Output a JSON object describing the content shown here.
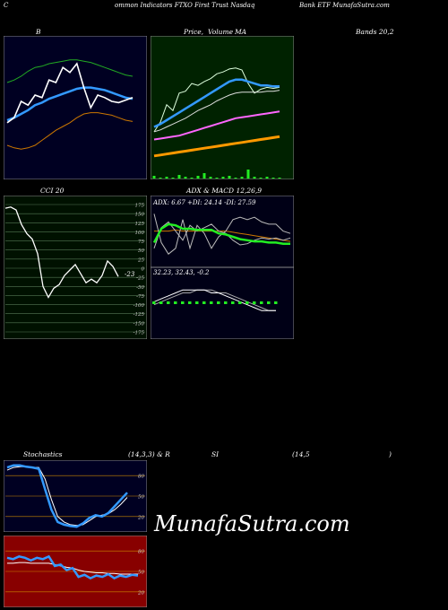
{
  "header": {
    "left": "C",
    "middle": "ommon  Indicators FTXO First Trust Nasdaq",
    "right": "Bank ETF MunafaSutra.com"
  },
  "labels": {
    "bollinger": "B",
    "price_ma": "Price,",
    "volume": "Volume",
    "ma": "MA",
    "bands": "Bands 20,2",
    "cci": "CCI 20",
    "adx": "ADX  & MACD 12,26,9",
    "adx_values": "ADX: 6.67  +DI: 24.14  -DI: 27.59",
    "macd_values": "32.23,  32.43,  -0.2",
    "stoch": "Stochastics",
    "stoch_params": "(14,3,3) & R",
    "rsi": "SI",
    "rsi_params": "(14,5",
    "rsi_close": ")",
    "watermark": "MunafaSutra.com"
  },
  "colors": {
    "bollinger_bg": "#000022",
    "price_bg": "#002200",
    "cci_bg": "#001100",
    "adx_bg": "#000016",
    "stoch_bg": "#000022",
    "rsi_bg": "#880000",
    "band_upper": "#22aa22",
    "band_lower": "#cc7700",
    "ma_blue": "#3399ff",
    "price_white": "#ffffff",
    "pink": "#ff66ff",
    "orange": "#ff9900",
    "green_line": "#22ee22"
  },
  "chart_data": [
    {
      "type": "line",
      "name": "bollinger",
      "ylim": [
        0,
        100
      ],
      "series": [
        {
          "key": "upper",
          "values": [
            70,
            72,
            75,
            79,
            82,
            83,
            85,
            86,
            87,
            88,
            88,
            87,
            86,
            84,
            82,
            80,
            78,
            76,
            75
          ]
        },
        {
          "key": "mid",
          "values": [
            40,
            42,
            45,
            48,
            52,
            54,
            57,
            59,
            61,
            63,
            65,
            66,
            66,
            65,
            64,
            62,
            60,
            58,
            57
          ]
        },
        {
          "key": "lower",
          "values": [
            20,
            18,
            17,
            18,
            20,
            24,
            28,
            32,
            35,
            38,
            42,
            45,
            46,
            46,
            45,
            44,
            42,
            40,
            39
          ]
        },
        {
          "key": "price",
          "values": [
            38,
            42,
            55,
            52,
            60,
            58,
            72,
            70,
            82,
            78,
            85,
            66,
            50,
            60,
            58,
            55,
            54,
            56,
            58
          ]
        }
      ]
    },
    {
      "type": "line",
      "name": "price_ma",
      "ylim": [
        0,
        100
      ],
      "series": [
        {
          "key": "price",
          "values": [
            20,
            30,
            48,
            42,
            60,
            62,
            70,
            68,
            72,
            75,
            80,
            82,
            85,
            86,
            84,
            70,
            60,
            64,
            66,
            65,
            66
          ]
        },
        {
          "key": "ma_short",
          "values": [
            25,
            28,
            32,
            36,
            40,
            44,
            48,
            52,
            56,
            60,
            64,
            68,
            72,
            74,
            74,
            72,
            70,
            68,
            68,
            67,
            67
          ]
        },
        {
          "key": "ma_mid",
          "values": [
            20,
            22,
            25,
            28,
            31,
            34,
            38,
            42,
            45,
            48,
            52,
            55,
            58,
            60,
            61,
            61,
            61,
            61,
            62,
            62,
            63
          ]
        },
        {
          "key": "ma_pink",
          "values": [
            12,
            13,
            14,
            15,
            16,
            18,
            20,
            22,
            24,
            26,
            28,
            30,
            32,
            34,
            35,
            36,
            37,
            38,
            39,
            40,
            41
          ]
        },
        {
          "key": "ma_orange",
          "values": [
            -5,
            -4,
            -3,
            -2,
            -1,
            0,
            1,
            2,
            3,
            4,
            5,
            6,
            7,
            8,
            9,
            10,
            11,
            12,
            13,
            14,
            15
          ]
        }
      ],
      "volume": [
        3,
        1,
        2,
        1,
        4,
        2,
        1,
        3,
        6,
        2,
        1,
        2,
        3,
        1,
        2,
        10,
        2,
        1,
        2,
        1,
        1
      ]
    },
    {
      "type": "line",
      "name": "cci",
      "ylim": [
        -175,
        175
      ],
      "ticks": [
        175,
        150,
        125,
        100,
        75,
        50,
        25,
        0,
        -25,
        -50,
        -75,
        -100,
        -125,
        -150,
        -175
      ],
      "tick_labels": [
        "175",
        "150",
        "125",
        "100",
        "75",
        "50",
        "25",
        "0",
        "-25",
        "-50",
        "-75",
        "-100",
        "-125",
        "-150",
        "-175"
      ],
      "value_label": "-23",
      "values": [
        165,
        168,
        160,
        120,
        95,
        80,
        40,
        -50,
        -80,
        -55,
        -45,
        -20,
        -5,
        10,
        -15,
        -40,
        -30,
        -40,
        -20,
        20,
        5,
        -23
      ]
    },
    {
      "type": "line",
      "name": "adx",
      "ylim": [
        0,
        50
      ],
      "series": [
        {
          "key": "adx",
          "values": [
            30,
            30,
            30,
            31,
            30,
            30,
            30,
            30,
            30,
            30,
            30,
            29,
            28,
            27,
            26,
            25,
            24,
            23,
            22,
            21
          ]
        },
        {
          "key": "plus_di",
          "values": [
            15,
            33,
            38,
            30,
            22,
            35,
            30,
            33,
            36,
            30,
            28,
            22,
            18,
            19,
            22,
            24,
            23,
            24,
            22,
            24
          ]
        },
        {
          "key": "minus_di",
          "values": [
            45,
            20,
            10,
            15,
            40,
            15,
            35,
            28,
            15,
            25,
            30,
            40,
            42,
            40,
            42,
            38,
            36,
            36,
            30,
            28
          ]
        },
        {
          "key": "adx_green",
          "values": [
            20,
            32,
            36,
            35,
            32,
            32,
            31,
            31,
            31,
            28,
            27,
            25,
            23,
            22,
            21,
            21,
            20,
            20,
            19,
            19
          ]
        }
      ]
    },
    {
      "type": "line",
      "name": "macd",
      "ylim": [
        -10,
        10
      ],
      "series": [
        {
          "key": "macd",
          "values": [
            2,
            3,
            4,
            5,
            6,
            6,
            6,
            6,
            5,
            5,
            4,
            3,
            2,
            1,
            0,
            -1,
            -1,
            -1
          ]
        },
        {
          "key": "signal",
          "values": [
            1,
            2,
            3,
            4,
            5,
            5,
            6,
            6,
            6,
            5,
            5,
            4,
            3,
            2,
            1,
            0,
            -1,
            -1
          ]
        }
      ]
    },
    {
      "type": "line",
      "name": "stochastics",
      "ylim": [
        0,
        100
      ],
      "ticks": [
        80,
        50,
        20
      ],
      "tick_labels": [
        "80",
        "50",
        "20"
      ],
      "series": [
        {
          "key": "k",
          "values": [
            92,
            95,
            95,
            93,
            92,
            90,
            60,
            30,
            12,
            8,
            6,
            5,
            10,
            18,
            22,
            20,
            25,
            35,
            45,
            55
          ]
        },
        {
          "key": "d",
          "values": [
            88,
            92,
            93,
            93,
            92,
            92,
            75,
            45,
            20,
            12,
            8,
            7,
            8,
            14,
            20,
            22,
            24,
            30,
            38,
            48
          ]
        }
      ]
    },
    {
      "type": "line",
      "name": "rsi",
      "ylim": [
        0,
        100
      ],
      "ticks": [
        80,
        50,
        20
      ],
      "tick_labels": [
        "80",
        "50",
        "20"
      ],
      "series": [
        {
          "key": "rsi",
          "values": [
            70,
            68,
            72,
            70,
            66,
            70,
            68,
            72,
            58,
            60,
            52,
            55,
            42,
            45,
            40,
            44,
            42,
            46,
            40,
            44,
            42,
            45,
            44
          ]
        },
        {
          "key": "rsi_avg",
          "values": [
            62,
            62,
            63,
            63,
            62,
            62,
            62,
            62,
            60,
            58,
            56,
            55,
            52,
            50,
            49,
            48,
            48,
            47,
            47,
            46,
            46,
            46,
            46
          ]
        }
      ]
    }
  ]
}
